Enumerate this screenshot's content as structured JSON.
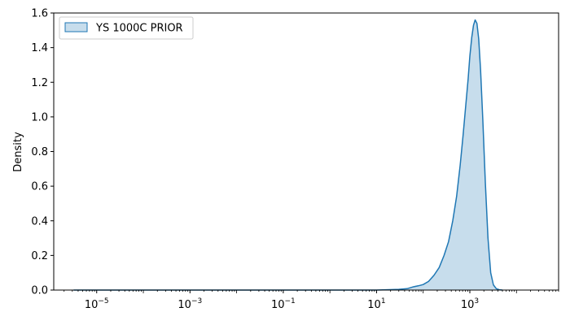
{
  "chart_data": {
    "type": "area",
    "kind": "kde",
    "x_scale": "log",
    "xlim": [
      1.2e-06,
      80000
    ],
    "ylim": [
      0,
      1.6
    ],
    "xlabel": "",
    "ylabel": "Density",
    "grid": false,
    "legend_position": "top-left",
    "x_ticks": [
      {
        "value": 1e-05,
        "base": "10",
        "exponent": "−5"
      },
      {
        "value": 0.001,
        "base": "10",
        "exponent": "−3"
      },
      {
        "value": 0.1,
        "base": "10",
        "exponent": "−1"
      },
      {
        "value": 10,
        "base": "10",
        "exponent": "1"
      },
      {
        "value": 1000,
        "base": "10",
        "exponent": "3"
      }
    ],
    "y_ticks": [
      {
        "value": 0.0,
        "label": "0.0"
      },
      {
        "value": 0.2,
        "label": "0.2"
      },
      {
        "value": 0.4,
        "label": "0.4"
      },
      {
        "value": 0.6,
        "label": "0.6"
      },
      {
        "value": 0.8,
        "label": "0.8"
      },
      {
        "value": 1.0,
        "label": "1.0"
      },
      {
        "value": 1.2,
        "label": "1.2"
      },
      {
        "value": 1.4,
        "label": "1.4"
      },
      {
        "value": 1.6,
        "label": "1.6"
      }
    ],
    "series": [
      {
        "name": "YS 1000C PRIOR",
        "line_color": "#1f77b4",
        "fill_color": "#1f77b4",
        "fill_opacity": 0.25,
        "x": [
          3.2e-06,
          0.0001,
          0.01,
          1,
          10,
          30,
          45,
          60,
          80,
          100,
          130,
          170,
          220,
          280,
          350,
          430,
          520,
          620,
          720,
          820,
          920,
          1000,
          1100,
          1200,
          1300,
          1420,
          1550,
          1700,
          1900,
          2150,
          2450,
          2800,
          3200,
          3700,
          4300,
          5000
        ],
        "y": [
          0.0,
          0.0,
          0.0,
          0.0,
          0.0,
          0.004,
          0.008,
          0.018,
          0.025,
          0.032,
          0.05,
          0.085,
          0.13,
          0.2,
          0.28,
          0.4,
          0.54,
          0.72,
          0.9,
          1.07,
          1.22,
          1.35,
          1.46,
          1.53,
          1.56,
          1.54,
          1.45,
          1.27,
          0.98,
          0.62,
          0.3,
          0.1,
          0.03,
          0.008,
          0.002,
          0.0
        ]
      }
    ]
  }
}
